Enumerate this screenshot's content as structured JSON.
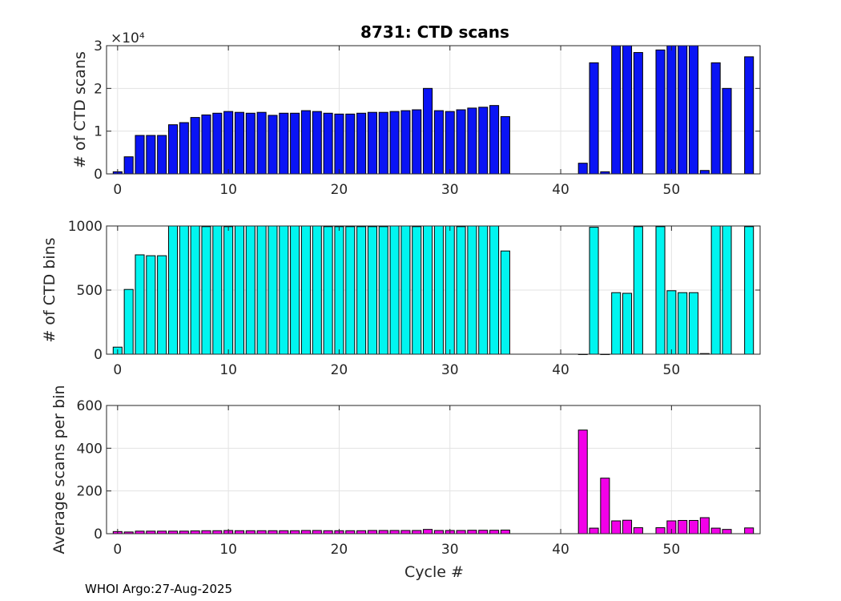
{
  "title": "8731: CTD scans",
  "footer": "WHOI Argo:27-Aug-2025",
  "colors": {
    "panel1": "#0a14f5",
    "panel2": "#00f5f0",
    "panel3": "#f200e8",
    "grid": "#e3e3e3",
    "axis": "#262626"
  },
  "chart_data": [
    {
      "type": "bar",
      "ylabel": "# of CTD scans",
      "xlabel": "",
      "exponent_label": "×10⁴",
      "xlim": [
        -1,
        58
      ],
      "ylim": [
        0,
        3
      ],
      "xticks": [
        0,
        10,
        20,
        30,
        40,
        50
      ],
      "yticks": [
        0,
        1,
        2,
        3
      ],
      "grid": true,
      "title": "8731: CTD scans",
      "x": [
        0,
        1,
        2,
        3,
        4,
        5,
        6,
        7,
        8,
        9,
        10,
        11,
        12,
        13,
        14,
        15,
        16,
        17,
        18,
        19,
        20,
        21,
        22,
        23,
        24,
        25,
        26,
        27,
        28,
        29,
        30,
        31,
        32,
        33,
        34,
        35,
        42,
        43,
        44,
        45,
        46,
        47,
        49,
        50,
        51,
        52,
        53,
        54,
        55,
        57
      ],
      "values": [
        0.05,
        0.4,
        0.9,
        0.9,
        0.9,
        1.15,
        1.2,
        1.32,
        1.38,
        1.42,
        1.46,
        1.44,
        1.42,
        1.44,
        1.37,
        1.42,
        1.42,
        1.48,
        1.46,
        1.42,
        1.4,
        1.4,
        1.42,
        1.44,
        1.44,
        1.46,
        1.48,
        1.5,
        2.0,
        1.48,
        1.46,
        1.5,
        1.54,
        1.56,
        1.6,
        1.34,
        0.25,
        2.6,
        0.05,
        3.0,
        3.0,
        2.84,
        2.9,
        3.0,
        3.0,
        3.0,
        0.08,
        2.6,
        2.0,
        2.74
      ]
    },
    {
      "type": "bar",
      "ylabel": "# of CTD bins",
      "xlabel": "",
      "xlim": [
        -1,
        58
      ],
      "ylim": [
        0,
        1000
      ],
      "xticks": [
        0,
        10,
        20,
        30,
        40,
        50
      ],
      "yticks": [
        0,
        500,
        1000
      ],
      "grid": true,
      "x": [
        0,
        1,
        2,
        3,
        4,
        5,
        6,
        7,
        8,
        9,
        10,
        11,
        12,
        13,
        14,
        15,
        16,
        17,
        18,
        19,
        20,
        21,
        22,
        23,
        24,
        25,
        26,
        27,
        28,
        29,
        30,
        31,
        32,
        33,
        34,
        35,
        42,
        43,
        44,
        45,
        46,
        47,
        49,
        50,
        51,
        52,
        53,
        54,
        55,
        57
      ],
      "values": [
        55,
        505,
        775,
        768,
        768,
        1000,
        1000,
        1000,
        995,
        1000,
        995,
        1000,
        1000,
        1000,
        1000,
        1000,
        1000,
        1000,
        1000,
        995,
        995,
        995,
        995,
        995,
        995,
        1000,
        1000,
        995,
        1000,
        1000,
        1000,
        995,
        1000,
        1000,
        1000,
        805,
        0,
        990,
        0,
        480,
        475,
        995,
        995,
        495,
        480,
        480,
        5,
        1000,
        1000,
        995
      ]
    },
    {
      "type": "bar",
      "ylabel": "Average scans per bin",
      "xlabel": "Cycle #",
      "xlim": [
        -1,
        58
      ],
      "ylim": [
        0,
        600
      ],
      "xticks": [
        0,
        10,
        20,
        30,
        40,
        50
      ],
      "yticks": [
        0,
        200,
        400,
        600
      ],
      "grid": true,
      "x": [
        0,
        1,
        2,
        3,
        4,
        5,
        6,
        7,
        8,
        9,
        10,
        11,
        12,
        13,
        14,
        15,
        16,
        17,
        18,
        19,
        20,
        21,
        22,
        23,
        24,
        25,
        26,
        27,
        28,
        29,
        30,
        31,
        32,
        33,
        34,
        35,
        42,
        43,
        44,
        45,
        46,
        47,
        49,
        50,
        51,
        52,
        53,
        54,
        55,
        57
      ],
      "values": [
        10,
        8,
        12,
        12,
        12,
        12,
        12,
        13,
        14,
        14,
        15,
        14,
        14,
        14,
        14,
        14,
        14,
        15,
        15,
        14,
        14,
        14,
        14,
        15,
        15,
        15,
        15,
        15,
        20,
        15,
        15,
        15,
        16,
        16,
        16,
        17,
        485,
        26,
        260,
        60,
        63,
        28,
        28,
        60,
        62,
        62,
        75,
        26,
        20,
        27
      ]
    }
  ]
}
